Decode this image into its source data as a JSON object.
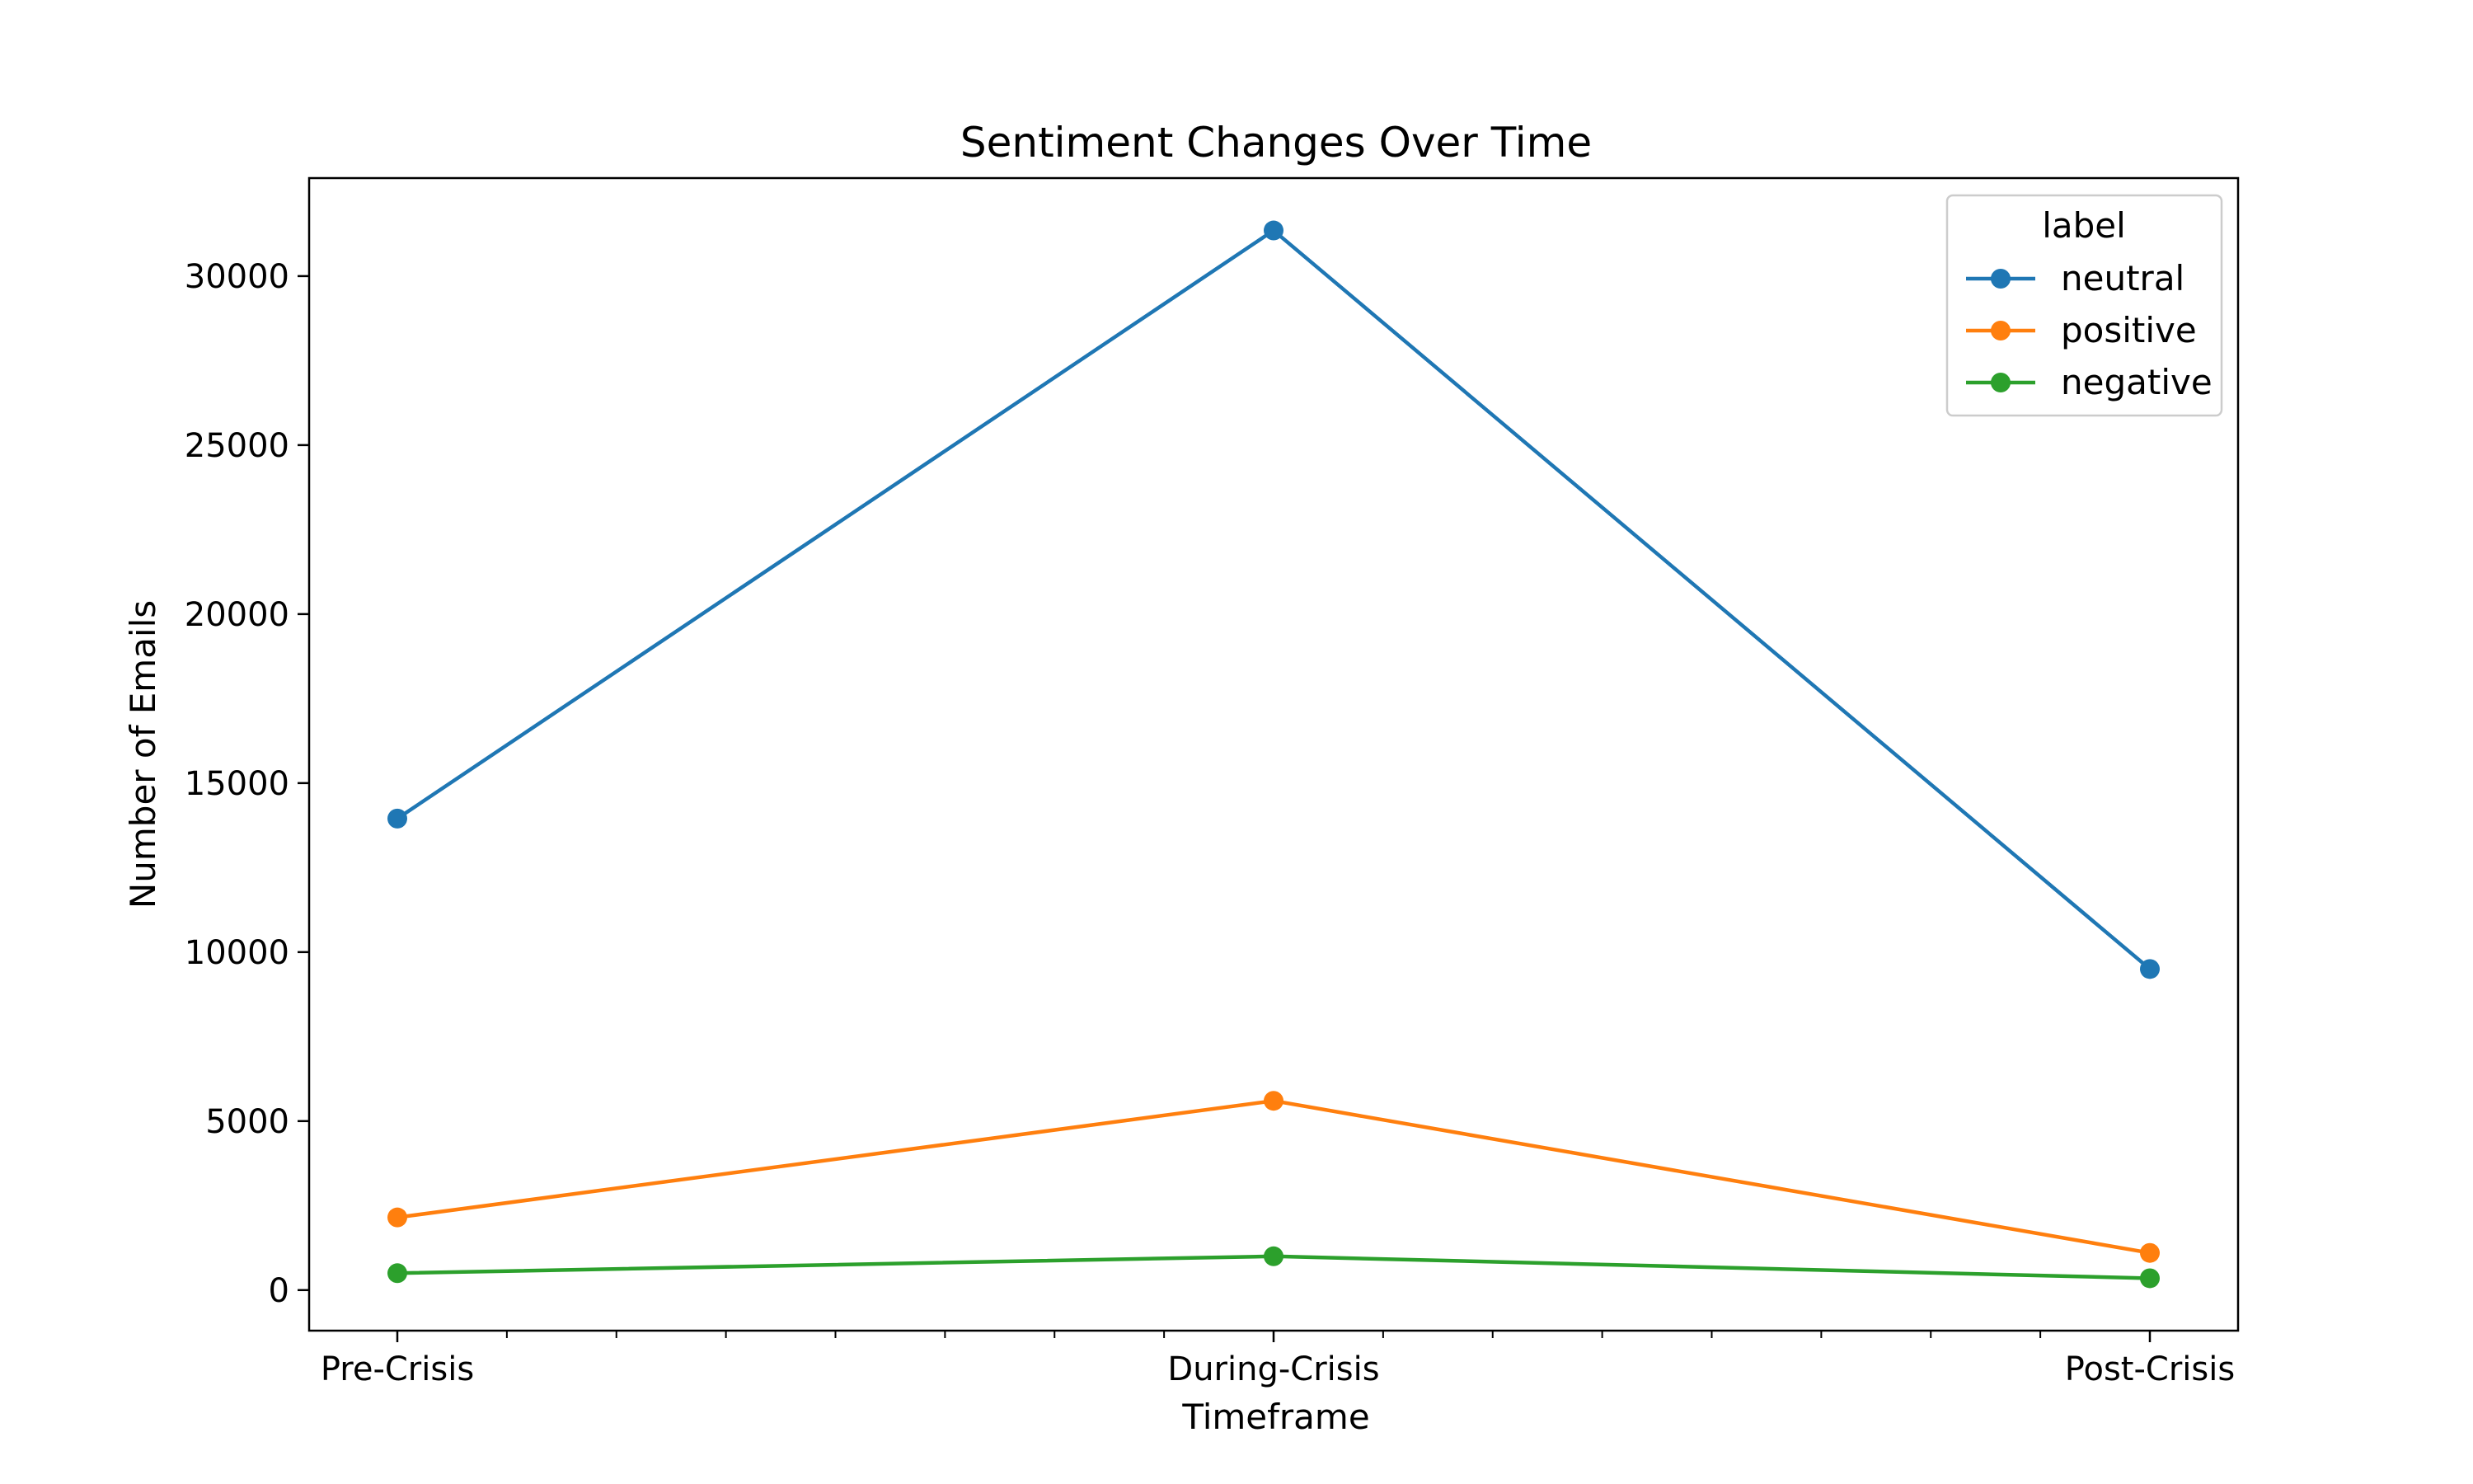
{
  "chart_data": {
    "type": "line",
    "title": "Sentiment Changes Over Time",
    "xlabel": "Timeframe",
    "ylabel": "Number of Emails",
    "categories": [
      "Pre-Crisis",
      "During-Crisis",
      "Post-Crisis"
    ],
    "ylim": [
      -1200,
      32900
    ],
    "yticks": [
      0,
      5000,
      10000,
      15000,
      20000,
      25000,
      30000
    ],
    "x_minor_ticks": 7,
    "grid": false,
    "legend": {
      "title": "label",
      "position": "top-right"
    },
    "series": [
      {
        "name": "neutral",
        "color": "#1f77b4",
        "marker": "circle",
        "values": [
          13950,
          31350,
          9500
        ]
      },
      {
        "name": "positive",
        "color": "#ff7f0e",
        "marker": "circle",
        "values": [
          2150,
          5600,
          1100
        ]
      },
      {
        "name": "negative",
        "color": "#2ca02c",
        "marker": "circle",
        "values": [
          500,
          1000,
          350
        ]
      }
    ]
  }
}
